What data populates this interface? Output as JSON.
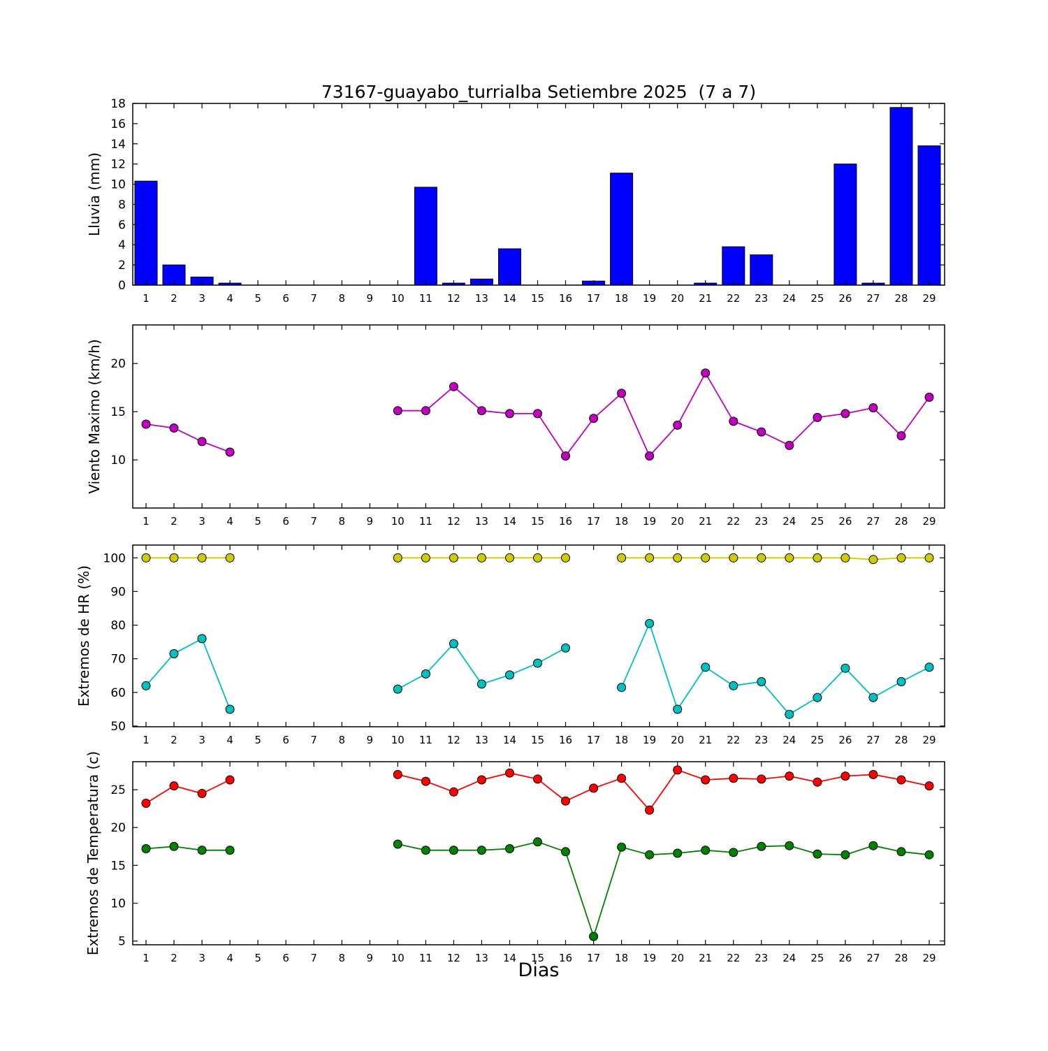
{
  "title": "73167-guayabo_turrialba Setiembre 2025  (7 a 7)",
  "xlabel": "Dias",
  "chart_data": {
    "days": [
      1,
      2,
      3,
      4,
      5,
      6,
      7,
      8,
      9,
      10,
      11,
      12,
      13,
      14,
      15,
      16,
      17,
      18,
      19,
      20,
      21,
      22,
      23,
      24,
      25,
      26,
      27,
      28,
      29
    ],
    "panels": [
      {
        "type": "bar",
        "ylabel": "Lluvia (mm)",
        "color": "#0000ff",
        "ylim": [
          0,
          18
        ],
        "yticks": [
          0,
          2,
          4,
          6,
          8,
          10,
          12,
          14,
          16,
          18
        ],
        "values": [
          10.3,
          2.0,
          0.8,
          0.2,
          0,
          0,
          0,
          0,
          0,
          0,
          9.7,
          0.2,
          0.6,
          3.6,
          0,
          0,
          0.4,
          11.1,
          0,
          0,
          0.2,
          3.8,
          3.0,
          0,
          0,
          12.0,
          0.2,
          17.6,
          13.8
        ]
      },
      {
        "type": "line",
        "ylabel": "Viento Maximo (km/h)",
        "ylim": [
          5,
          24
        ],
        "yticks": [
          10,
          15,
          20
        ],
        "series": [
          {
            "name": "viento_maximo",
            "color": "#bf00bf",
            "x": [
              1,
              2,
              3,
              4,
              10,
              11,
              12,
              13,
              14,
              15,
              16,
              17,
              18,
              19,
              20,
              21,
              22,
              23,
              24,
              25,
              26,
              27,
              28,
              29
            ],
            "values": [
              13.7,
              13.3,
              11.9,
              10.8,
              15.1,
              15.1,
              17.6,
              15.1,
              14.8,
              14.8,
              10.4,
              14.3,
              16.9,
              10.4,
              13.6,
              19.0,
              14.0,
              12.9,
              11.5,
              14.4,
              14.8,
              15.4,
              12.5,
              16.5
            ]
          }
        ]
      },
      {
        "type": "line",
        "ylabel": "Extremos de HR (%)",
        "ylim": [
          49.8,
          103.8
        ],
        "yticks": [
          50,
          60,
          70,
          80,
          90,
          100
        ],
        "series": [
          {
            "name": "hr_maxima",
            "color": "#cccc00",
            "x": [
              1,
              2,
              3,
              4,
              10,
              11,
              12,
              13,
              14,
              15,
              16,
              18,
              19,
              20,
              21,
              22,
              23,
              24,
              25,
              26,
              27,
              28,
              29
            ],
            "values": [
              100,
              100,
              100,
              100,
              100,
              100,
              100,
              100,
              100,
              100,
              100,
              100,
              100,
              100,
              100,
              100,
              100,
              100,
              100,
              100,
              99.5,
              100,
              100
            ]
          },
          {
            "name": "hr_minima",
            "color": "#00bfbf",
            "x": [
              1,
              2,
              3,
              4,
              10,
              11,
              12,
              13,
              14,
              15,
              16,
              18,
              19,
              20,
              21,
              22,
              23,
              24,
              25,
              26,
              27,
              28,
              29
            ],
            "values": [
              62,
              71.5,
              76,
              55,
              61,
              65.5,
              74.5,
              62.5,
              65.2,
              68.7,
              73.2,
              61.5,
              80.5,
              55,
              67.5,
              62,
              63.2,
              53.5,
              58.5,
              67.2,
              58.5,
              63.2,
              67.5
            ]
          }
        ]
      },
      {
        "type": "line",
        "ylabel": "Extremos de Temperatura (c)",
        "ylim": [
          4.5,
          28.7
        ],
        "yticks": [
          5,
          10,
          15,
          20,
          25
        ],
        "series": [
          {
            "name": "temperatura_maxima",
            "color": "#ff0000",
            "x": [
              1,
              2,
              3,
              4,
              10,
              11,
              12,
              13,
              14,
              15,
              16,
              17,
              18,
              19,
              20,
              21,
              22,
              23,
              24,
              25,
              26,
              27,
              28,
              29
            ],
            "values": [
              23.2,
              25.5,
              24.5,
              26.3,
              27.0,
              26.1,
              24.7,
              26.3,
              27.2,
              26.4,
              23.5,
              25.2,
              26.5,
              22.3,
              27.6,
              26.3,
              26.5,
              26.4,
              26.8,
              26.0,
              26.8,
              27.0,
              26.3,
              25.5
            ]
          },
          {
            "name": "temperatura_minima",
            "color": "#008000",
            "x": [
              1,
              2,
              3,
              4,
              10,
              11,
              12,
              13,
              14,
              15,
              16,
              17,
              18,
              19,
              20,
              21,
              22,
              23,
              24,
              25,
              26,
              27,
              28,
              29
            ],
            "values": [
              17.2,
              17.5,
              17.0,
              17.0,
              17.8,
              17.0,
              17.0,
              17.0,
              17.2,
              18.1,
              16.8,
              5.6,
              17.4,
              16.4,
              16.6,
              17.0,
              16.7,
              17.5,
              17.6,
              16.5,
              16.4,
              17.6,
              16.8,
              16.4
            ]
          }
        ]
      }
    ]
  }
}
